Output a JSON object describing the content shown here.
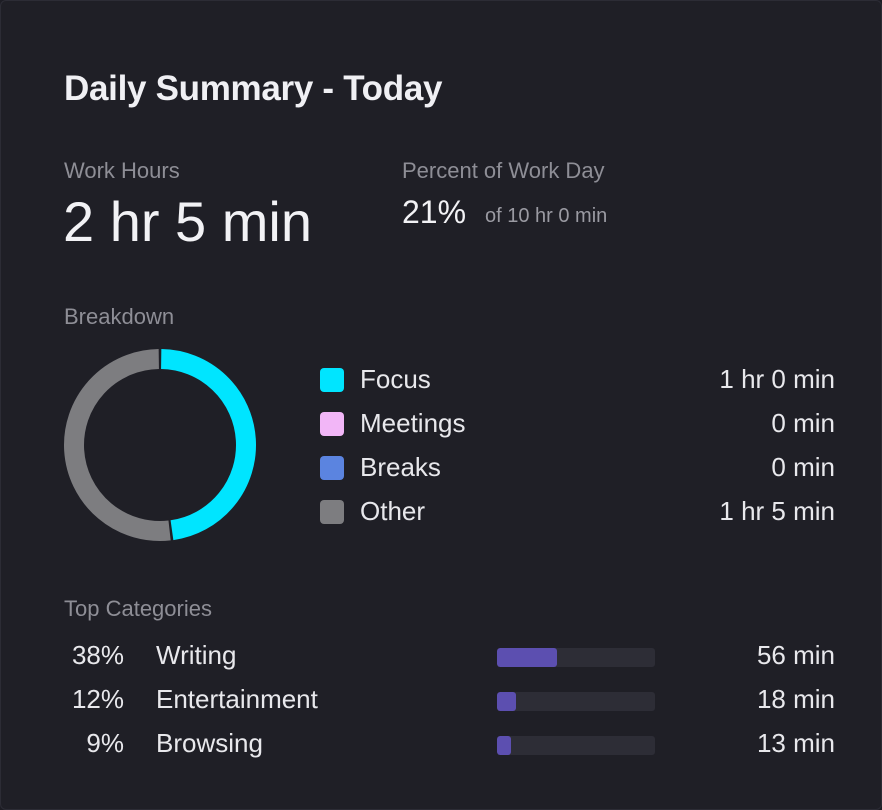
{
  "title": "Daily Summary - Today",
  "work_hours": {
    "label": "Work Hours",
    "value": "2 hr 5 min"
  },
  "percent_work_day": {
    "label": "Percent of Work Day",
    "value": "21%",
    "of_text": "of 10 hr 0 min"
  },
  "breakdown": {
    "label": "Breakdown",
    "items": [
      {
        "label": "Focus",
        "value": "1 hr 0 min",
        "color": "#00e5ff",
        "minutes": 60
      },
      {
        "label": "Meetings",
        "value": "0 min",
        "color": "#f2b6f7",
        "minutes": 0
      },
      {
        "label": "Breaks",
        "value": "0 min",
        "color": "#5b84e0",
        "minutes": 0
      },
      {
        "label": "Other",
        "value": "1 hr 5 min",
        "color": "#7d7d80",
        "minutes": 65
      }
    ]
  },
  "top_categories": {
    "label": "Top Categories",
    "items": [
      {
        "percent": "38%",
        "name": "Writing",
        "time": "56 min",
        "fraction": 0.38
      },
      {
        "percent": "12%",
        "name": "Entertainment",
        "time": "18 min",
        "fraction": 0.12
      },
      {
        "percent": "9%",
        "name": "Browsing",
        "time": "13 min",
        "fraction": 0.09
      }
    ]
  },
  "colors": {
    "bar_fill": "#5c4fb0",
    "bar_track": "#2d2d36",
    "background": "#1f1f26"
  }
}
